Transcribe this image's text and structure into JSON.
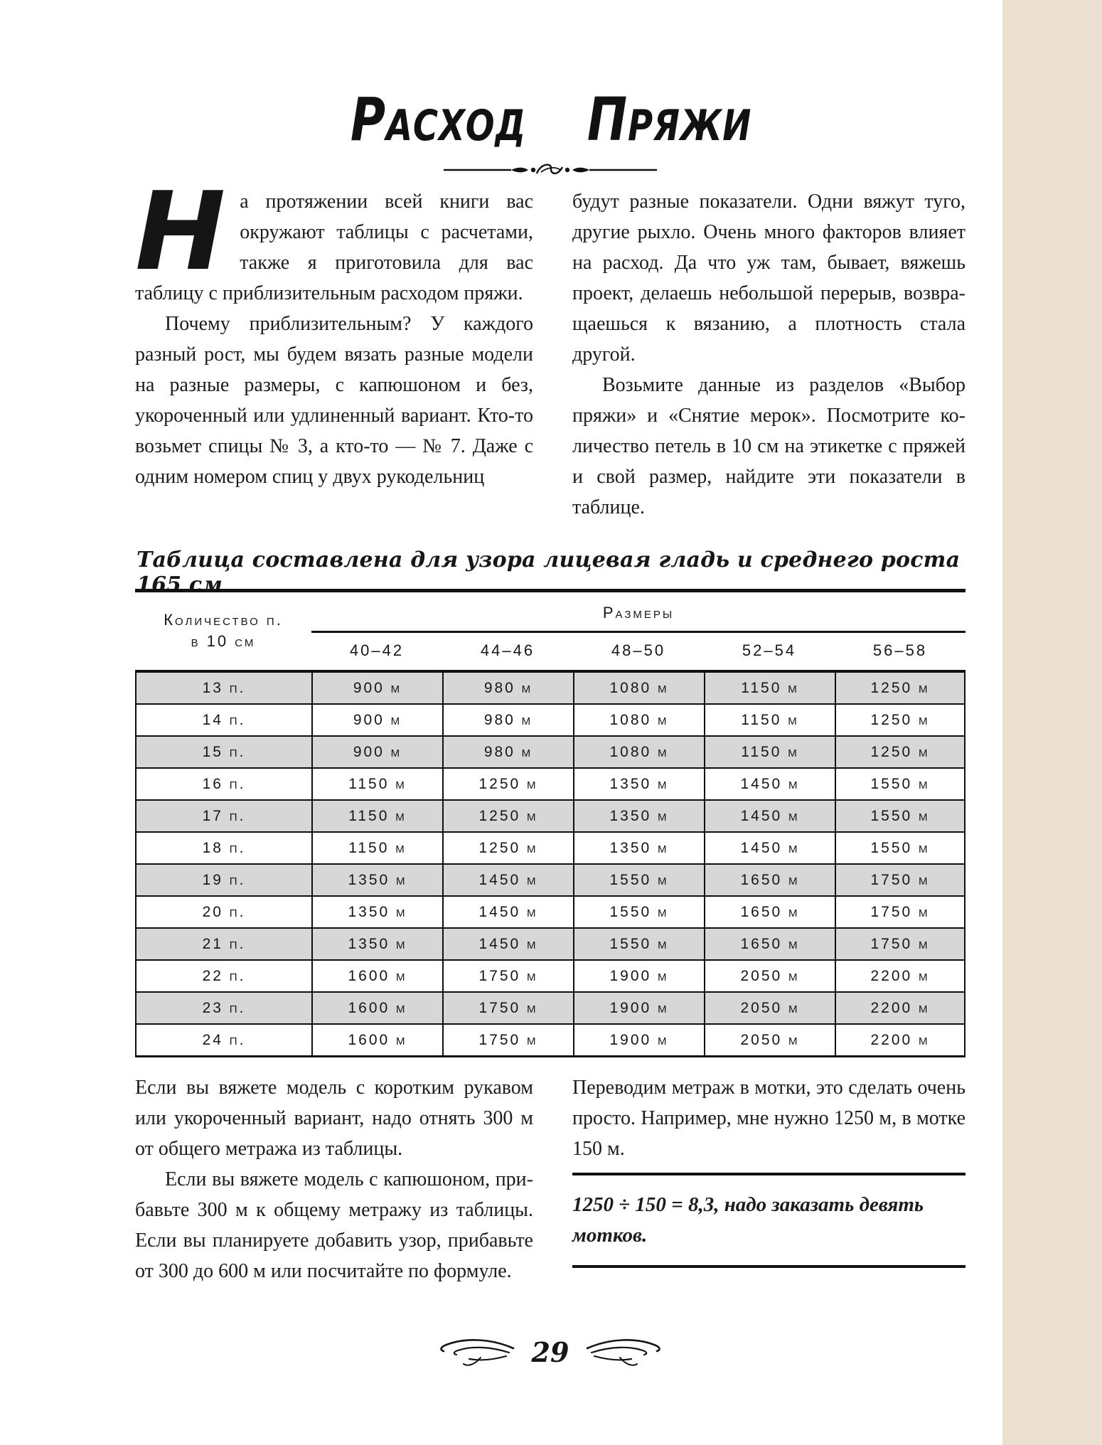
{
  "header": {
    "title_word1": "Расход",
    "title_word2": "пряжи"
  },
  "intro": {
    "dropcap": "Н",
    "left_p1": "а протяжении всей книги вас окру­жают таблицы с расчетами, также я приготовила для вас таблицу с при­близительным расходом пряжи.",
    "left_p2": "Почему приблизительным? У каждого разный рост, мы будем вязать разные моде­ли на разные размеры, с капюшоном и без, укороченный или удлиненный вариант. Кто-то возьмет спицы № 3, а кто-то — № 7. Даже с одним номером спиц у двух рукодельниц",
    "right_p1": "будут разные показатели. Одни вяжут туго, другие рыхло. Очень много факторов влия­ет на расход. Да что уж там, бывает, вяжешь проект, делаешь небольшой перерыв, возвра­щаешься к вязанию, а плотность стала другой.",
    "right_p2": "Возьмите данные из разделов «Выбор пряжи» и «Снятие мерок». Посмотрите ко­личество петель в 10 см на этикетке с пря­жей и свой размер, найдите эти показатели в таблице."
  },
  "table": {
    "caption": "Таблица составлена для узора лицевая гладь и среднего роста 165 см",
    "col_header_line1": "Количество п.",
    "col_header_line2": "в 10 см",
    "group_header": "Размеры",
    "sizes": [
      "40–42",
      "44–46",
      "48–50",
      "52–54",
      "56–58"
    ],
    "rows": [
      {
        "label": "13 п.",
        "values": [
          "900 м",
          "980 м",
          "1080 м",
          "1150 м",
          "1250 м"
        ]
      },
      {
        "label": "14 п.",
        "values": [
          "900 м",
          "980 м",
          "1080 м",
          "1150 м",
          "1250 м"
        ]
      },
      {
        "label": "15 п.",
        "values": [
          "900 м",
          "980 м",
          "1080 м",
          "1150 м",
          "1250 м"
        ]
      },
      {
        "label": "16 п.",
        "values": [
          "1150 м",
          "1250 м",
          "1350 м",
          "1450 м",
          "1550 м"
        ]
      },
      {
        "label": "17 п.",
        "values": [
          "1150 м",
          "1250 м",
          "1350 м",
          "1450 м",
          "1550 м"
        ]
      },
      {
        "label": "18 п.",
        "values": [
          "1150 м",
          "1250 м",
          "1350 м",
          "1450 м",
          "1550 м"
        ]
      },
      {
        "label": "19 п.",
        "values": [
          "1350 м",
          "1450 м",
          "1550 м",
          "1650 м",
          "1750 м"
        ]
      },
      {
        "label": "20 п.",
        "values": [
          "1350 м",
          "1450 м",
          "1550 м",
          "1650 м",
          "1750 м"
        ]
      },
      {
        "label": "21 п.",
        "values": [
          "1350 м",
          "1450 м",
          "1550 м",
          "1650 м",
          "1750 м"
        ]
      },
      {
        "label": "22 п.",
        "values": [
          "1600 м",
          "1750 м",
          "1900 м",
          "2050 м",
          "2200 м"
        ]
      },
      {
        "label": "23 п.",
        "values": [
          "1600 м",
          "1750 м",
          "1900 м",
          "2050 м",
          "2200 м"
        ]
      },
      {
        "label": "24 п.",
        "values": [
          "1600 м",
          "1750 м",
          "1900 м",
          "2050 м",
          "2200 м"
        ]
      }
    ]
  },
  "outro": {
    "left_p1": "Если вы вяжете модель с коротким рукавом или укороченный вариант, надо отнять 300 м от общего метража из таблицы.",
    "left_p2": "Если вы вяжете модель с капюшоном, при­бавьте 300 м к общему метражу из таблицы. Если вы планируете добавить узор, прибавьте от 300 до 600 м или посчитайте по формуле.",
    "right_p1": "Переводим метраж в мотки, это сделать очень просто. Например, мне нужно 1250 м, в мотке 150 м.",
    "formula": "1250 ÷ 150 = 8,3, надо заказать девять мотков."
  },
  "footer": {
    "page_number": "29"
  }
}
